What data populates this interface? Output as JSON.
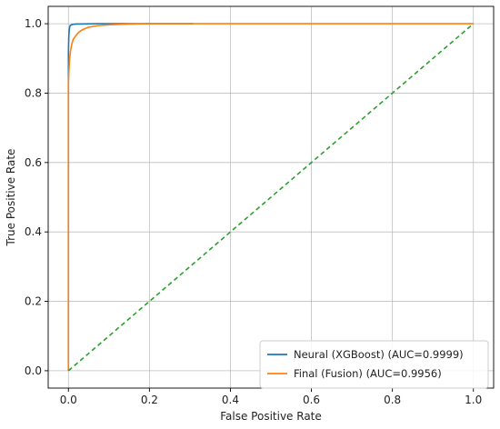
{
  "chart_data": {
    "type": "line",
    "title": "",
    "xlabel": "False Positive Rate",
    "ylabel": "True Positive Rate",
    "xlim": [
      -0.05,
      1.05
    ],
    "ylim": [
      -0.05,
      1.05
    ],
    "xticks": [
      0.0,
      0.2,
      0.4,
      0.6,
      0.8,
      1.0
    ],
    "yticks": [
      0.0,
      0.2,
      0.4,
      0.6,
      0.8,
      1.0
    ],
    "xtick_labels": [
      "0.0",
      "0.2",
      "0.4",
      "0.6",
      "0.8",
      "1.0"
    ],
    "ytick_labels": [
      "0.0",
      "0.2",
      "0.4",
      "0.6",
      "0.8",
      "1.0"
    ],
    "grid": true,
    "legend_position": "lower-right",
    "series": [
      {
        "name": "Neural (XGBoost) (AUC=0.9999)",
        "color": "#1f77b4",
        "x": [
          0.0,
          0.0,
          0.0,
          0.001,
          0.002,
          0.003,
          0.004,
          0.006,
          0.01,
          0.02,
          0.04,
          0.08,
          0.15,
          0.25,
          0.308
        ],
        "y": [
          0.0,
          0.8,
          0.92,
          0.965,
          0.98,
          0.99,
          0.994,
          0.996,
          0.998,
          0.999,
          0.9995,
          1.0,
          1.0,
          1.0,
          1.0
        ]
      },
      {
        "name": "Final (Fusion) (AUC=0.9956)",
        "color": "#ff7f0e",
        "x": [
          0.0,
          0.0,
          0.0,
          0.001,
          0.002,
          0.003,
          0.005,
          0.008,
          0.012,
          0.018,
          0.025,
          0.035,
          0.05,
          0.07,
          0.1,
          0.15,
          0.2,
          0.3,
          0.5,
          0.7,
          1.0
        ],
        "y": [
          0.0,
          0.8,
          0.83,
          0.86,
          0.88,
          0.9,
          0.92,
          0.94,
          0.955,
          0.965,
          0.975,
          0.983,
          0.99,
          0.994,
          0.997,
          0.999,
          1.0,
          1.0,
          1.0,
          1.0,
          1.0
        ]
      },
      {
        "name": "",
        "color": "#2ca02c",
        "style": "dashed",
        "x": [
          0.0,
          1.0
        ],
        "y": [
          0.0,
          1.0
        ]
      }
    ]
  }
}
